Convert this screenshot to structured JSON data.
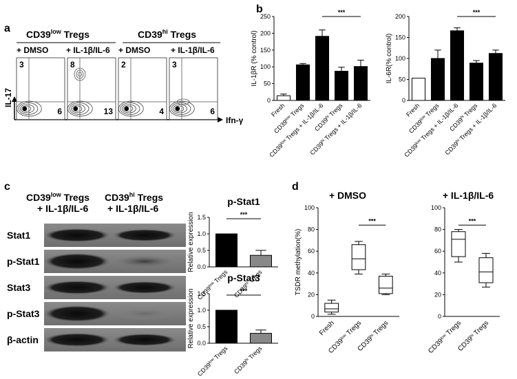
{
  "figure": {
    "panel_labels": [
      "a",
      "b",
      "c",
      "d"
    ],
    "panel_a": {
      "groups": [
        {
          "title_main": "CD39",
          "title_sup": "low",
          "title_rest": " Tregs"
        },
        {
          "title_main": "CD39",
          "title_sup": "hi",
          "title_rest": " Tregs"
        }
      ],
      "conditions": [
        "+ DMSO",
        "+ IL-1β/IL-6",
        "+ DMSO",
        "+ IL-1β/IL-6"
      ],
      "y_axis": "IL-17",
      "x_axis": "Ifn-γ",
      "plots": [
        {
          "upper_left": "3",
          "lower_right": "6"
        },
        {
          "upper_left": "8",
          "lower_right": "13"
        },
        {
          "upper_left": "2",
          "lower_right": "4"
        },
        {
          "upper_left": "3",
          "lower_right": "6"
        }
      ]
    },
    "panel_c": {
      "col_headers": [
        {
          "line1_main": "CD39",
          "line1_sup": "low",
          "line1_rest": " Tregs",
          "line2": "+ IL-1β/IL-6"
        },
        {
          "line1_main": "CD39",
          "line1_sup": "hi",
          "line1_rest": " Tregs",
          "line2": "+ IL-1β/IL-6"
        }
      ],
      "blot_rows": [
        "Stat1",
        "p-Stat1",
        "Stat3",
        "p-Stat3",
        "β-actin"
      ]
    },
    "panel_d": {
      "headers": [
        "+ DMSO",
        "+ IL-1β/IL-6"
      ]
    }
  },
  "chart_data": [
    {
      "type": "bar",
      "panel": "b-left",
      "ylabel": "IL-1βR (% control)",
      "categories": [
        "Fresh",
        "CD39low Tregs",
        "CD39low Tregs + IL-1β/IL-6",
        "CD39hi Tregs",
        "CD39hi Tregs + IL-1β/IL-6"
      ],
      "values": [
        14,
        106,
        191,
        87,
        101
      ],
      "errors": [
        5,
        4,
        19,
        12,
        19
      ],
      "fill": [
        "#ffffff",
        "#000000",
        "#000000",
        "#000000",
        "#000000"
      ],
      "ylim": [
        0,
        250
      ],
      "yticks": [
        0,
        50,
        100,
        150,
        200,
        250
      ],
      "significance": "***"
    },
    {
      "type": "bar",
      "panel": "b-right",
      "ylabel": "IL-6R(% control)",
      "categories": [
        "Fresh",
        "CD39low Tregs",
        "CD39low Tregs + IL-1β/IL-6",
        "CD39hi Tregs",
        "CD39hi Tregs + IL-1β/IL-6"
      ],
      "values": [
        53,
        100,
        166,
        89,
        112
      ],
      "errors": [
        0,
        20,
        7,
        6,
        8
      ],
      "fill": [
        "#ffffff",
        "#000000",
        "#000000",
        "#000000",
        "#000000"
      ],
      "ylim": [
        0,
        200
      ],
      "yticks": [
        0,
        50,
        100,
        150,
        200
      ],
      "significance": "***"
    },
    {
      "type": "bar",
      "panel": "c-top",
      "title": "p-Stat1",
      "ylabel": "Relative expression",
      "categories": [
        "CD39low Tregs",
        "CD39hi Tregs"
      ],
      "values": [
        1.0,
        0.35
      ],
      "errors": [
        0,
        0.15
      ],
      "fill": [
        "#000000",
        "#888888"
      ],
      "ylim": [
        0,
        1.5
      ],
      "yticks": [
        0.0,
        0.5,
        1.0,
        1.5
      ],
      "significance": "***"
    },
    {
      "type": "bar",
      "panel": "c-bottom",
      "title": "p-Stat3",
      "ylabel": "Relative expression",
      "categories": [
        "CD39low Tregs",
        "CD39hi Tregs"
      ],
      "values": [
        1.0,
        0.3
      ],
      "errors": [
        0,
        0.1
      ],
      "fill": [
        "#000000",
        "#888888"
      ],
      "ylim": [
        0,
        1.5
      ],
      "yticks": [
        0.0,
        0.5,
        1.0,
        1.5
      ],
      "significance": "***"
    },
    {
      "type": "box",
      "panel": "d-left",
      "ylabel": "TSDR methylation(%)",
      "categories": [
        "Fresh",
        "CD39low Tregs",
        "CD39hi Tregs"
      ],
      "boxes": [
        {
          "min": 2,
          "q1": 4,
          "median": 7,
          "q3": 12,
          "max": 15
        },
        {
          "min": 39,
          "q1": 43,
          "median": 53,
          "q3": 66,
          "max": 69
        },
        {
          "min": 20,
          "q1": 21,
          "median": 26,
          "q3": 37,
          "max": 39
        }
      ],
      "ylim": [
        0,
        100
      ],
      "yticks": [
        0,
        20,
        40,
        60,
        80,
        100
      ],
      "significance": "***"
    },
    {
      "type": "box",
      "panel": "d-right",
      "categories": [
        "CD39low Tregs",
        "CD39hi Tregs"
      ],
      "boxes": [
        {
          "min": 50,
          "q1": 55,
          "median": 71,
          "q3": 78,
          "max": 80
        },
        {
          "min": 27,
          "q1": 31,
          "median": 41,
          "q3": 54,
          "max": 58
        }
      ],
      "ylim": [
        0,
        100
      ],
      "yticks": [
        0,
        20,
        40,
        60,
        80,
        100
      ],
      "significance": "***"
    }
  ]
}
